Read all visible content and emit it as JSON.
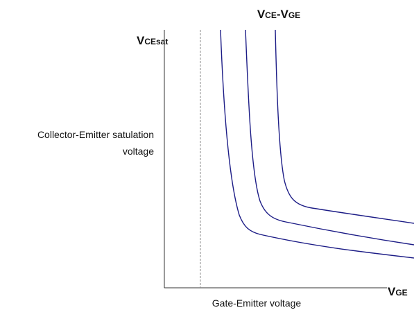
{
  "title": {
    "main": "V",
    "sub": "CE",
    "sep": "-",
    "main2": "V",
    "sub2": "GE"
  },
  "y_axis": {
    "symbol": "V",
    "sub": "CEsat",
    "description": [
      "Collector-Emitter satulation",
      "voltage"
    ]
  },
  "x_axis": {
    "symbol": "V",
    "sub": "GE",
    "description": "Gate-Emitter voltage"
  }
}
